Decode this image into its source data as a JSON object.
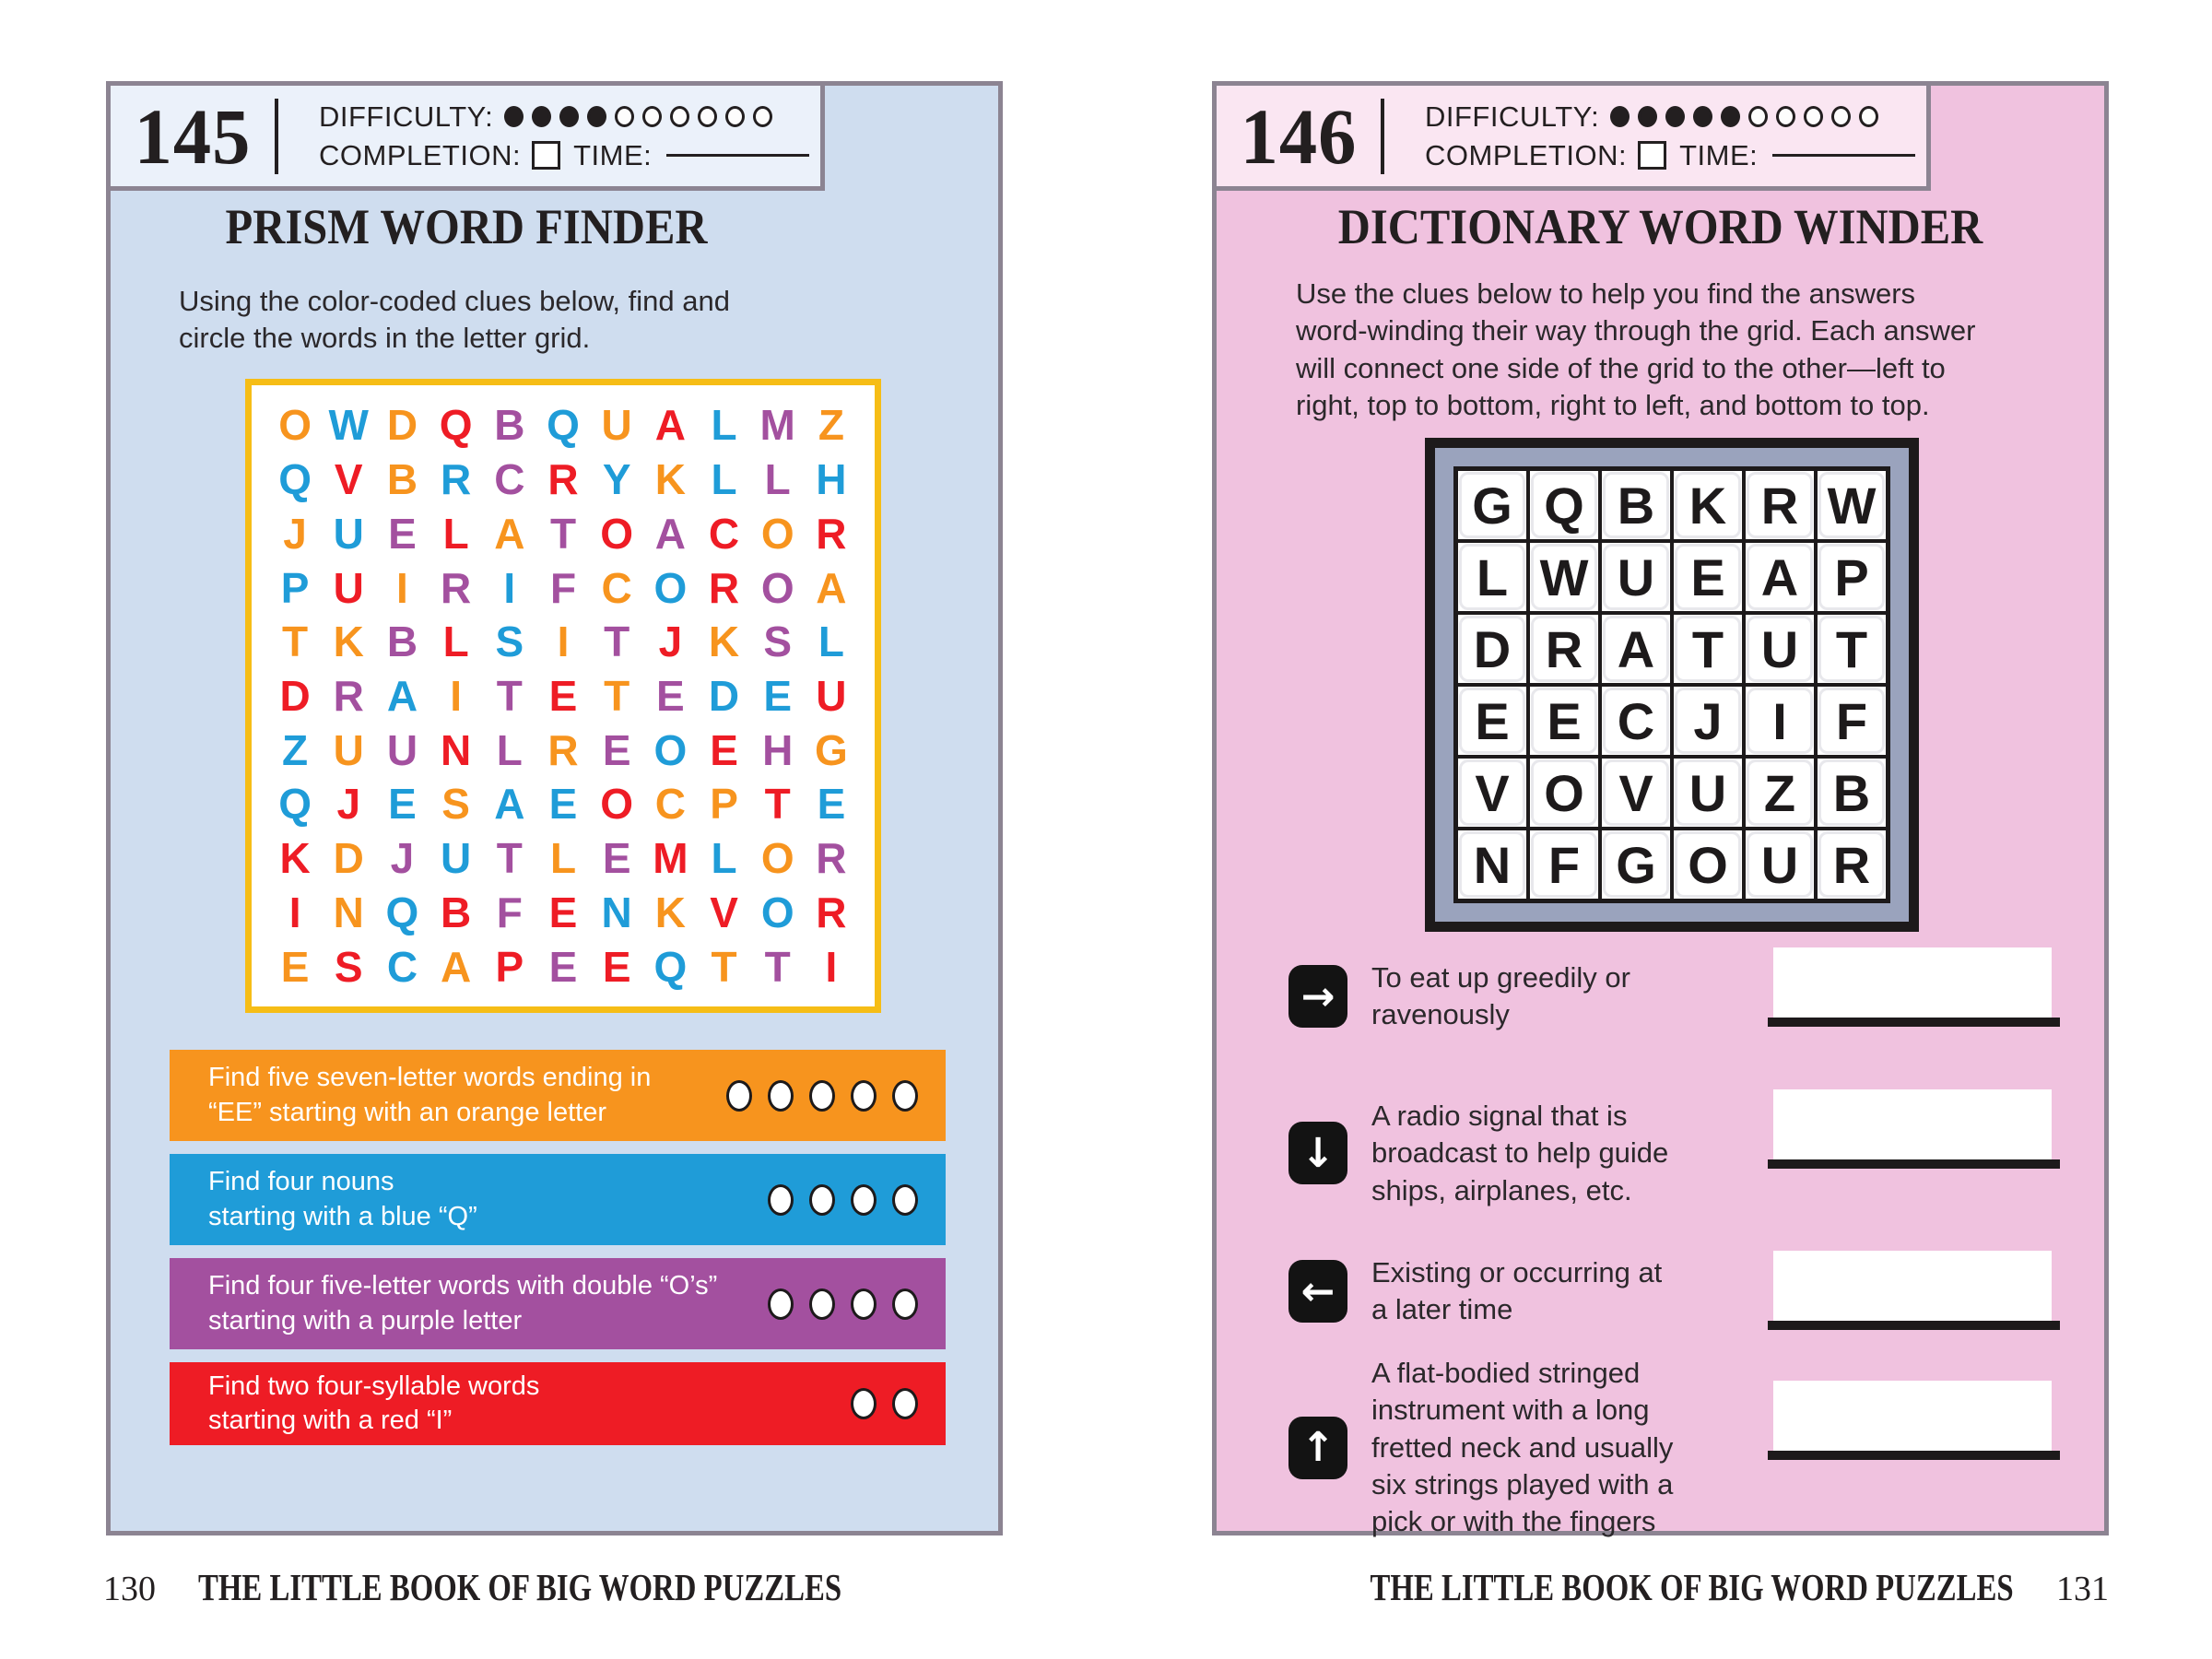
{
  "palette": {
    "orange": "#F7941E",
    "blue": "#1F9CD8",
    "red": "#EE1C25",
    "purple": "#A3509F",
    "left_page_bg": "#cfddef",
    "right_page_bg": "#f0c2df",
    "grid_border_yellow": "#f6bd16",
    "winder_frame_slate": "#9aa3bd"
  },
  "puzzles": [
    {
      "number": "145",
      "labels": {
        "difficulty": "DIFFICULTY:",
        "completion": "COMPLETION:",
        "time": "TIME:"
      },
      "difficulty_filled": 4,
      "difficulty_total": 10,
      "title": "PRISM WORD FINDER",
      "instructions": "Using the color-coded clues below, find and\ncircle the words in the letter grid.",
      "grid": {
        "rows": [
          {
            "l": "OWDQBQUALMZ",
            "c": "oborpborbpo"
          },
          {
            "l": "QVBRCRYKLLH",
            "c": "brobprbobpb"
          },
          {
            "l": "JUELATOACOR",
            "c": "obproprpror"
          },
          {
            "l": "PUIRIFCOROA",
            "c": "bropbpobrpo"
          },
          {
            "l": "TKBLSITJKSL",
            "c": "ooprbopropb"
          },
          {
            "l": "DRAITETEDEU",
            "c": "rpbopropbbr"
          },
          {
            "l": "ZUUNLREOEHG",
            "c": "boprpopbrpo"
          },
          {
            "l": "QJESAEOCPTE",
            "c": "brbobbroorb"
          },
          {
            "l": "KDJUTLEMLOR",
            "c": "ropbpoprbop"
          },
          {
            "l": "INQBFENKVOR",
            "c": "robrprborbr"
          },
          {
            "l": "ESCAPEEQTTI",
            "c": "orborprbopr"
          }
        ]
      },
      "clues": [
        {
          "color": "orange",
          "text": "Find five seven-letter words ending in\n“EE” starting with an orange letter",
          "circles": 5
        },
        {
          "color": "blue",
          "text": "Find four nouns\nstarting with a blue “Q”",
          "circles": 4
        },
        {
          "color": "purple",
          "text": "Find four five-letter words with double “O’s”\nstarting with a purple letter",
          "circles": 4
        },
        {
          "color": "red",
          "text": "Find two four-syllable words\nstarting with a red “I”",
          "circles": 2
        }
      ]
    },
    {
      "number": "146",
      "labels": {
        "difficulty": "DIFFICULTY:",
        "completion": "COMPLETION:",
        "time": "TIME:"
      },
      "difficulty_filled": 5,
      "difficulty_total": 10,
      "title": "DICTIONARY WORD WINDER",
      "instructions": "Use the clues below to help you find the answers\nword-winding their way through the grid. Each answer\nwill connect one side of the grid to the other—left to\nright, top to bottom, right to left, and bottom to top.",
      "grid": {
        "rows": [
          "GQBKRW",
          "LWUEAP",
          "DRATUT",
          "EECJIF",
          "VOVUZB",
          "NFGOUR"
        ]
      },
      "clues": [
        {
          "arrow": "right",
          "text": "To eat up greedily or\nravenously"
        },
        {
          "arrow": "down",
          "text": "A radio signal that is\nbroadcast to help guide\nships, airplanes, etc."
        },
        {
          "arrow": "left",
          "text": "Existing or occurring at\na later time"
        },
        {
          "arrow": "up",
          "text": "A flat-bodied stringed\ninstrument with a long\nfretted neck and usually\nsix strings played with a\npick or with the fingers"
        }
      ]
    }
  ],
  "footer_left": {
    "page": "130",
    "title": "THE LITTLE BOOK OF BIG WORD PUZZLES"
  },
  "footer_right": {
    "page": "131",
    "title": "THE LITTLE BOOK OF BIG WORD PUZZLES"
  }
}
